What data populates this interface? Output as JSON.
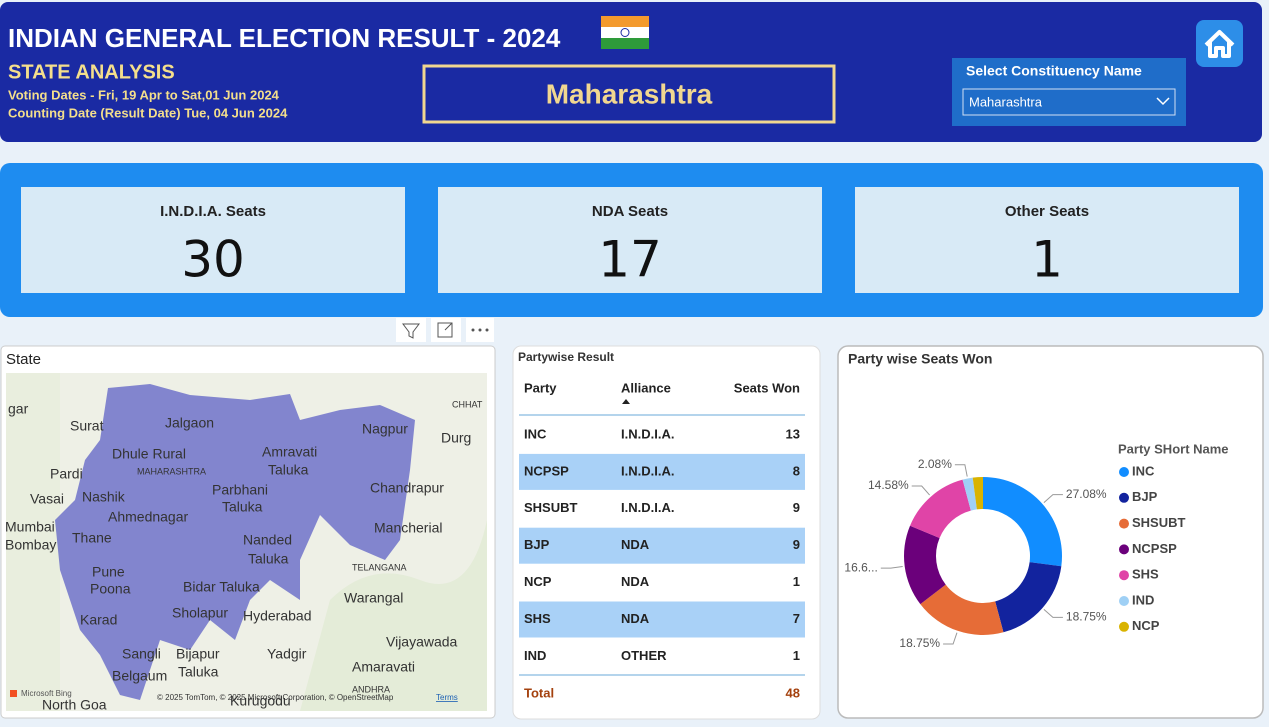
{
  "header": {
    "title": "INDIAN GENERAL ELECTION RESULT -  2024",
    "subtitle": "STATE ANALYSIS",
    "voting_dates": "Voting Dates - Fri, 19 Apr to Sat,01 Jun 2024",
    "counting_date": "Counting Date (Result Date) Tue, 04 Jun 2024",
    "state": "Maharashtra"
  },
  "filter": {
    "label": "Select Constituency Name",
    "selected": "Maharashtra"
  },
  "kpis": [
    {
      "label": "I.N.D.I.A. Seats",
      "value": 30
    },
    {
      "label": "NDA Seats",
      "value": 17
    },
    {
      "label": "Other Seats",
      "value": 1
    }
  ],
  "map": {
    "title": "State",
    "labels": [
      "gar",
      "Surat",
      "Jalgaon",
      "Nagpur",
      "Dhule Rural",
      "Amravati",
      "Taluka",
      "MAHARASHTRA",
      "Pardi",
      "Chandrapur",
      "Parbhani",
      "Vasai",
      "Nashik",
      "Taluka",
      "Ahmednagar",
      "Mancherial",
      "Mumbai",
      "Bombay",
      "Thane",
      "Nanded",
      "Taluka",
      "TELANGANA",
      "Pune",
      "Poona",
      "Bidar Taluka",
      "Warangal",
      "Sholapur",
      "Hyderabad",
      "Karad",
      "Vijayawada",
      "Sangli",
      "Bijapur",
      "Yadgir",
      "Belgaum",
      "Taluka",
      "Amaravati",
      "North Goa",
      "CHHAT",
      "Durg",
      "ANDHRA",
      "Kurugodu"
    ],
    "attribution": "© 2025 TomTom, © 2025 Microsoft Corporation, © OpenStreetMap",
    "terms": "Terms",
    "logo": "Microsoft Bing"
  },
  "table": {
    "title": "Partywise Result",
    "columns": [
      "Party",
      "Alliance",
      "Seats Won"
    ],
    "rows": [
      [
        "INC",
        "I.N.D.I.A.",
        13
      ],
      [
        "NCPSP",
        "I.N.D.I.A.",
        8
      ],
      [
        "SHSUBT",
        "I.N.D.I.A.",
        9
      ],
      [
        "BJP",
        "NDA",
        9
      ],
      [
        "NCP",
        "NDA",
        1
      ],
      [
        "SHS",
        "NDA",
        7
      ],
      [
        "IND",
        "OTHER",
        1
      ]
    ],
    "total": [
      "Total",
      48
    ]
  },
  "chart_data": {
    "type": "donut",
    "title": "Party wise Seats Won",
    "legend_title": "Party SHort Name",
    "legend": "right",
    "categories": [
      "INC",
      "BJP",
      "SHSUBT",
      "NCPSP",
      "SHS",
      "IND",
      "NCP"
    ],
    "values": [
      27.08,
      18.75,
      18.75,
      16.67,
      14.58,
      2.08,
      2.08
    ],
    "value_labels": [
      "27.08%",
      "18.75%",
      "18.75%",
      "16.6...",
      "14.58%",
      "2.08%",
      null
    ],
    "colors": [
      "#118dff",
      "#12239e",
      "#e66c37",
      "#6b007b",
      "#e044a7",
      "#9fd0f5",
      "#d9b300"
    ]
  }
}
